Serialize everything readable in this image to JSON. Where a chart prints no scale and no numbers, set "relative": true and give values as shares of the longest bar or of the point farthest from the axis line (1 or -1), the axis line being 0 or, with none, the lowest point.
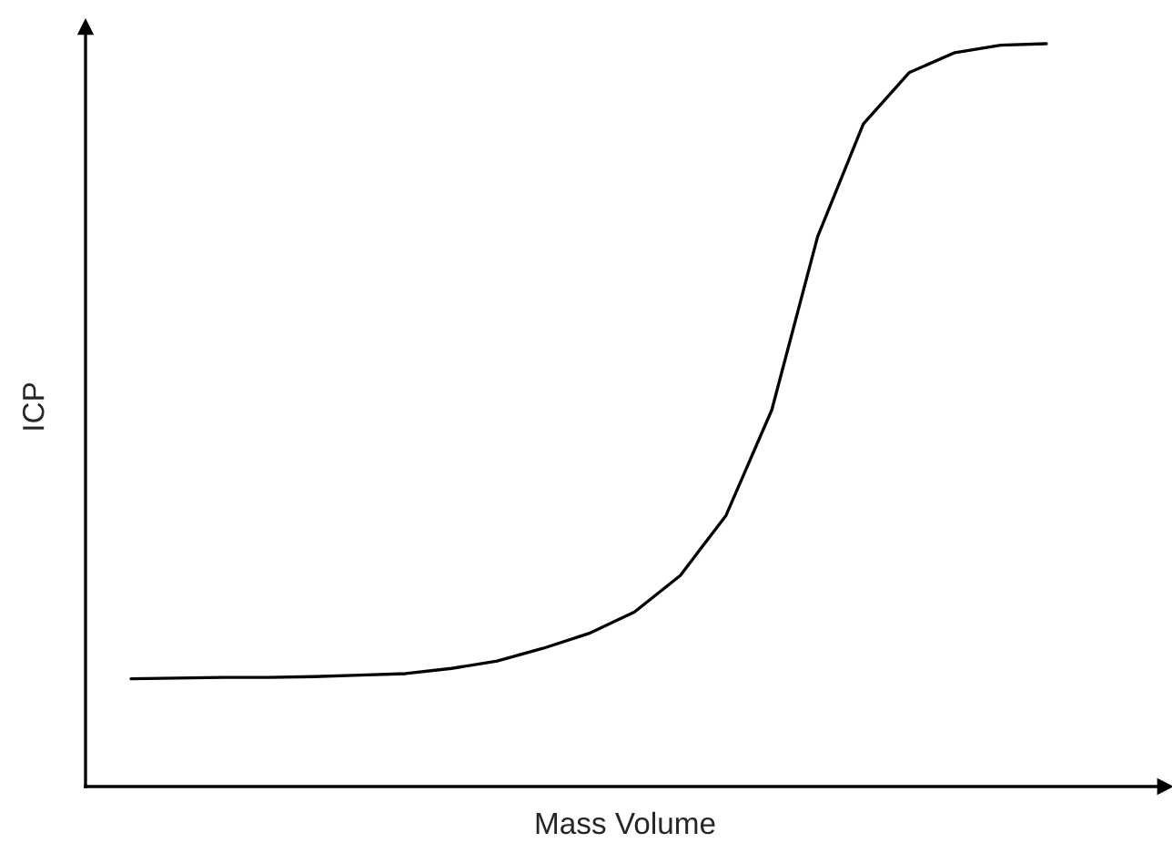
{
  "chart_data": {
    "type": "line",
    "relative": true,
    "xlabel": "Mass Volume",
    "ylabel": "ICP",
    "categories": [
      null,
      null,
      null,
      null,
      null,
      null,
      null,
      null,
      null,
      null,
      null,
      null,
      null,
      null,
      null,
      null,
      null,
      null,
      null,
      null,
      null
    ],
    "series": [
      {
        "color": "#000000",
        "values": [
          0.145,
          0.146,
          0.147,
          0.147,
          0.148,
          0.15,
          0.152,
          0.159,
          0.169,
          0.186,
          0.206,
          0.235,
          0.284,
          0.365,
          0.507,
          0.74,
          0.892,
          0.961,
          0.988,
          0.998,
          1.0
        ]
      }
    ],
    "legend": false,
    "marker": "none",
    "line_style": "solid"
  }
}
